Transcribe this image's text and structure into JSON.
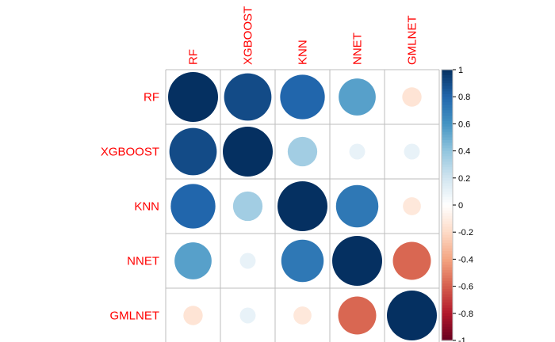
{
  "chart_data": {
    "type": "heatmap",
    "variables": [
      "RF",
      "XGBOOST",
      "KNN",
      "NNET",
      "GMLNET"
    ],
    "matrix": [
      [
        1.0,
        0.9,
        0.8,
        0.55,
        -0.15
      ],
      [
        0.9,
        1.0,
        0.35,
        0.1,
        0.1
      ],
      [
        0.8,
        0.35,
        1.0,
        0.72,
        -0.13
      ],
      [
        0.55,
        0.1,
        0.72,
        1.0,
        -0.58
      ],
      [
        -0.15,
        0.1,
        -0.13,
        -0.58,
        1.0
      ]
    ],
    "colorbar_ticks": [
      "1",
      "0.8",
      "0.6",
      "0.4",
      "0.2",
      "0",
      "-0.2",
      "-0.4",
      "-0.6",
      "-0.8",
      "-1"
    ],
    "scale_range": [
      -1,
      1
    ],
    "grid": true,
    "legend_position": "right",
    "label_color": "#ff0000",
    "colors": {
      "negative_strong": "#67001f",
      "neutral": "#ffffff",
      "positive_strong": "#053061"
    }
  }
}
